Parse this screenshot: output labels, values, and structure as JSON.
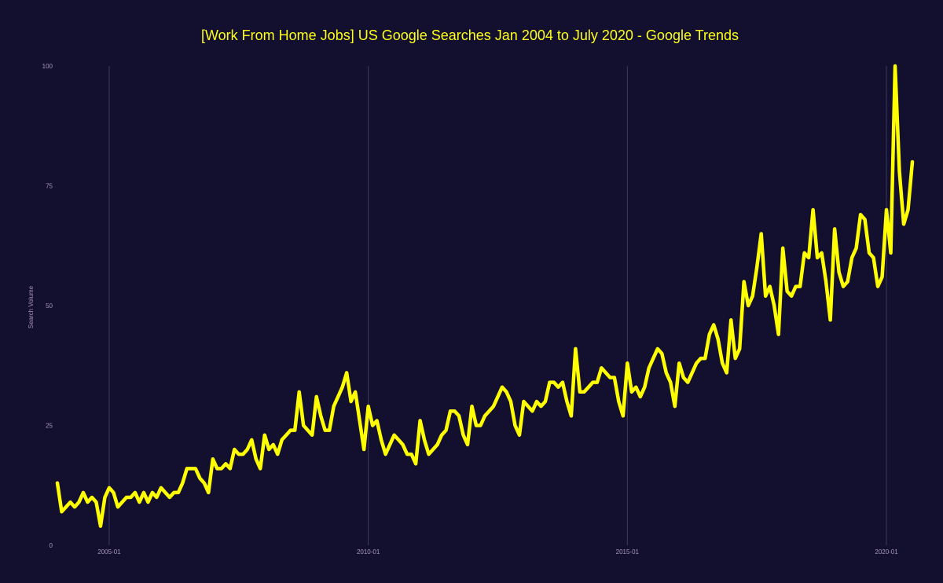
{
  "chart_data": {
    "type": "line",
    "title": "[Work From Home Jobs] US Google Searches Jan 2004 to July 2020  - Google Trends",
    "xlabel": "",
    "ylabel": "Search Volume",
    "ylim": [
      0,
      100
    ],
    "yticks": [
      0,
      25,
      50,
      75,
      100
    ],
    "xticks": [
      "2005-01",
      "2010-01",
      "2015-01",
      "2020-01"
    ],
    "grid": "vertical lines at x ticks",
    "legend": "none",
    "line_color": "#ffff00",
    "background_color": "#130f2e",
    "x": [
      "2004-01",
      "2004-02",
      "2004-03",
      "2004-04",
      "2004-05",
      "2004-06",
      "2004-07",
      "2004-08",
      "2004-09",
      "2004-10",
      "2004-11",
      "2004-12",
      "2005-01",
      "2005-02",
      "2005-03",
      "2005-04",
      "2005-05",
      "2005-06",
      "2005-07",
      "2005-08",
      "2005-09",
      "2005-10",
      "2005-11",
      "2005-12",
      "2006-01",
      "2006-02",
      "2006-03",
      "2006-04",
      "2006-05",
      "2006-06",
      "2006-07",
      "2006-08",
      "2006-09",
      "2006-10",
      "2006-11",
      "2006-12",
      "2007-01",
      "2007-02",
      "2007-03",
      "2007-04",
      "2007-05",
      "2007-06",
      "2007-07",
      "2007-08",
      "2007-09",
      "2007-10",
      "2007-11",
      "2007-12",
      "2008-01",
      "2008-02",
      "2008-03",
      "2008-04",
      "2008-05",
      "2008-06",
      "2008-07",
      "2008-08",
      "2008-09",
      "2008-10",
      "2008-11",
      "2008-12",
      "2009-01",
      "2009-02",
      "2009-03",
      "2009-04",
      "2009-05",
      "2009-06",
      "2009-07",
      "2009-08",
      "2009-09",
      "2009-10",
      "2009-11",
      "2009-12",
      "2010-01",
      "2010-02",
      "2010-03",
      "2010-04",
      "2010-05",
      "2010-06",
      "2010-07",
      "2010-08",
      "2010-09",
      "2010-10",
      "2010-11",
      "2010-12",
      "2011-01",
      "2011-02",
      "2011-03",
      "2011-04",
      "2011-05",
      "2011-06",
      "2011-07",
      "2011-08",
      "2011-09",
      "2011-10",
      "2011-11",
      "2011-12",
      "2012-01",
      "2012-02",
      "2012-03",
      "2012-04",
      "2012-05",
      "2012-06",
      "2012-07",
      "2012-08",
      "2012-09",
      "2012-10",
      "2012-11",
      "2012-12",
      "2013-01",
      "2013-02",
      "2013-03",
      "2013-04",
      "2013-05",
      "2013-06",
      "2013-07",
      "2013-08",
      "2013-09",
      "2013-10",
      "2013-11",
      "2013-12",
      "2014-01",
      "2014-02",
      "2014-03",
      "2014-04",
      "2014-05",
      "2014-06",
      "2014-07",
      "2014-08",
      "2014-09",
      "2014-10",
      "2014-11",
      "2014-12",
      "2015-01",
      "2015-02",
      "2015-03",
      "2015-04",
      "2015-05",
      "2015-06",
      "2015-07",
      "2015-08",
      "2015-09",
      "2015-10",
      "2015-11",
      "2015-12",
      "2016-01",
      "2016-02",
      "2016-03",
      "2016-04",
      "2016-05",
      "2016-06",
      "2016-07",
      "2016-08",
      "2016-09",
      "2016-10",
      "2016-11",
      "2016-12",
      "2017-01",
      "2017-02",
      "2017-03",
      "2017-04",
      "2017-05",
      "2017-06",
      "2017-07",
      "2017-08",
      "2017-09",
      "2017-10",
      "2017-11",
      "2017-12",
      "2018-01",
      "2018-02",
      "2018-03",
      "2018-04",
      "2018-05",
      "2018-06",
      "2018-07",
      "2018-08",
      "2018-09",
      "2018-10",
      "2018-11",
      "2018-12",
      "2019-01",
      "2019-02",
      "2019-03",
      "2019-04",
      "2019-05",
      "2019-06",
      "2019-07",
      "2019-08",
      "2019-09",
      "2019-10",
      "2019-11",
      "2019-12",
      "2020-01",
      "2020-02",
      "2020-03",
      "2020-04",
      "2020-05",
      "2020-06",
      "2020-07"
    ],
    "values": [
      13,
      7,
      8,
      9,
      8,
      9,
      11,
      9,
      10,
      9,
      4,
      10,
      12,
      11,
      8,
      9,
      10,
      10,
      11,
      9,
      11,
      9,
      11,
      10,
      12,
      11,
      10,
      11,
      11,
      13,
      16,
      16,
      16,
      14,
      13,
      11,
      18,
      16,
      16,
      17,
      16,
      20,
      19,
      19,
      20,
      22,
      18,
      16,
      23,
      20,
      21,
      19,
      22,
      23,
      24,
      24,
      32,
      25,
      24,
      23,
      31,
      27,
      24,
      24,
      29,
      31,
      33,
      36,
      30,
      32,
      26,
      20,
      29,
      25,
      26,
      22,
      19,
      21,
      23,
      22,
      21,
      19,
      19,
      17,
      26,
      22,
      19,
      20,
      21,
      23,
      24,
      28,
      28,
      27,
      23,
      21,
      29,
      25,
      25,
      27,
      28,
      29,
      31,
      33,
      32,
      30,
      25,
      23,
      30,
      29,
      28,
      30,
      29,
      30,
      34,
      34,
      33,
      34,
      30,
      27,
      41,
      32,
      32,
      33,
      34,
      34,
      37,
      36,
      35,
      35,
      30,
      27,
      38,
      32,
      33,
      31,
      33,
      37,
      39,
      41,
      40,
      36,
      34,
      29,
      38,
      35,
      34,
      36,
      38,
      39,
      39,
      44,
      46,
      43,
      38,
      36,
      47,
      39,
      41,
      55,
      50,
      52,
      58,
      65,
      52,
      54,
      50,
      44,
      62,
      53,
      52,
      54,
      54,
      61,
      60,
      70,
      60,
      61,
      55,
      47,
      66,
      57,
      54,
      55,
      60,
      62,
      69,
      68,
      61,
      60,
      54,
      56,
      70,
      61,
      100,
      78,
      67,
      70,
      80
    ]
  }
}
